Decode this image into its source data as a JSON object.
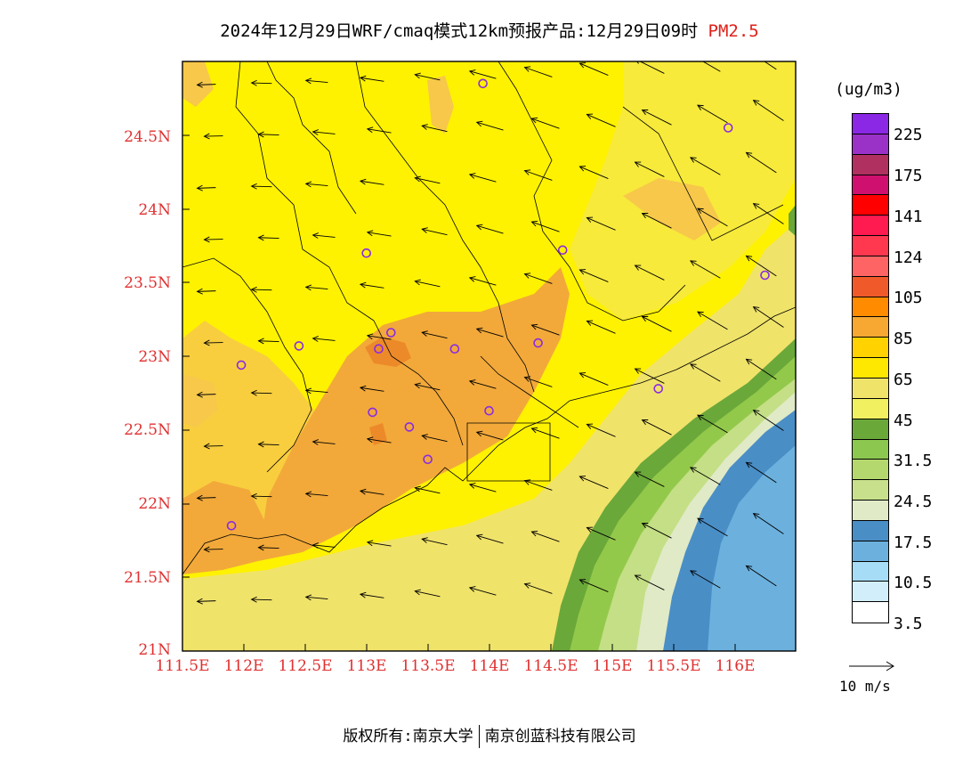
{
  "title": {
    "main": "2024年12月29日WRF/cmaq模式12km预报产品:12月29日09时",
    "variable": "PM2.5"
  },
  "map": {
    "lat_labels": [
      "24.5N",
      "24N",
      "23.5N",
      "23N",
      "22.5N",
      "22N",
      "21.5N",
      "21N"
    ],
    "lon_labels": [
      "111.5E",
      "112E",
      "112.5E",
      "113E",
      "113.5E",
      "114E",
      "114.5E",
      "115E",
      "115.5E",
      "116E"
    ],
    "lon_range": [
      111.5,
      116.5
    ],
    "lat_range": [
      21.0,
      25.0
    ],
    "field_colors": {
      "bright_yellow": "#fff200",
      "pale_yellow": "#f0e36a",
      "light_orange": "#f7c84a",
      "orange": "#f2a93a",
      "deep_orange": "#ec8a2a",
      "dark_green": "#6ba83a",
      "green": "#93c94a",
      "light_green": "#c4df85",
      "pale_green": "#e0eac6",
      "dark_blue": "#4a8ec6",
      "blue": "#6cb1de"
    },
    "station_color": "#8a2be2"
  },
  "colorbar": {
    "unit": "(ug/m3)",
    "colors": [
      "#8b28e6",
      "#9b32c8",
      "#b03060",
      "#d0106e",
      "#ff0000",
      "#ff1a50",
      "#ff3850",
      "#ff6464",
      "#f05a2a",
      "#ff8c00",
      "#f7a832",
      "#ffd200",
      "#ffe800",
      "#f0e36a",
      "#f0f060",
      "#6ba83a",
      "#8cc850",
      "#b4d86e",
      "#c8e08c",
      "#e0eac6",
      "#4a8ec6",
      "#6cb1de",
      "#a6dcf5",
      "#d2eefa",
      "#ffffff"
    ],
    "labels": [
      "225",
      "175",
      "141",
      "124",
      "105",
      "85",
      "65",
      "45",
      "31.5",
      "24.5",
      "17.5",
      "10.5",
      "3.5"
    ]
  },
  "wind_legend": {
    "label": "10 m/s"
  },
  "footer": {
    "copyright": "版权所有:南京大学",
    "company": "南京创蓝科技有限公司"
  }
}
